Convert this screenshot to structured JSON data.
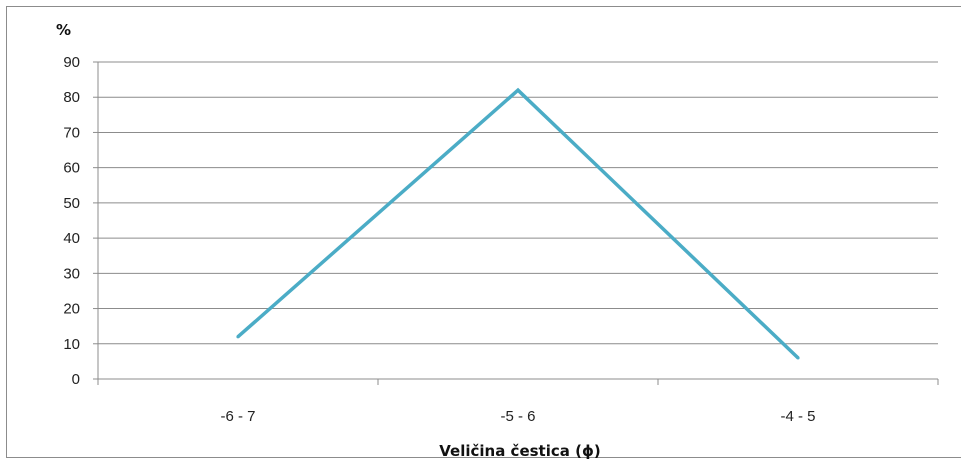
{
  "chart_data": {
    "type": "line",
    "title": "",
    "ylabel": "%",
    "xlabel": "Veličina čestica (ϕ)",
    "categories": [
      "-6 - 7",
      "-5 - 6",
      "-4 - 5"
    ],
    "series": [
      {
        "values": [
          12,
          82,
          6
        ],
        "color": "#4bacc6"
      }
    ],
    "ylim": [
      0,
      90
    ],
    "yticks": [
      0,
      10,
      20,
      30,
      40,
      50,
      60,
      70,
      80,
      90
    ],
    "grid": true,
    "legend": "none"
  }
}
